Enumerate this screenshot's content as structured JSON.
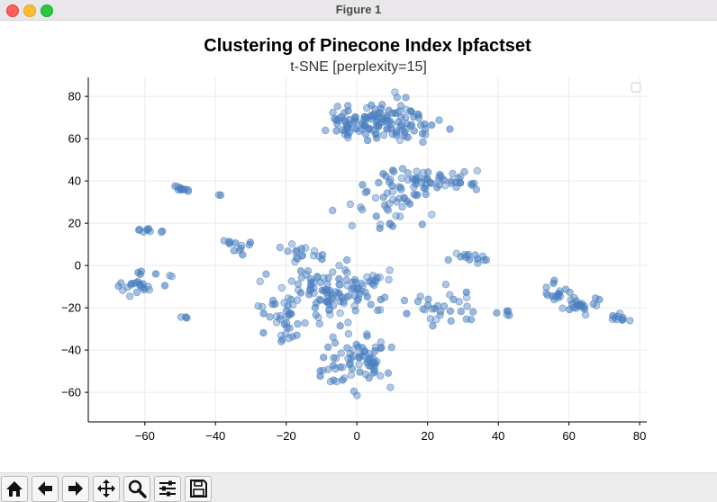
{
  "window": {
    "title": "Figure 1"
  },
  "toolbar": {
    "buttons": [
      {
        "name": "home",
        "icon": "home-icon"
      },
      {
        "name": "back",
        "icon": "arrow-left-icon"
      },
      {
        "name": "forward",
        "icon": "arrow-right-icon"
      },
      {
        "name": "pan",
        "icon": "move-icon"
      },
      {
        "name": "zoom",
        "icon": "magnifier-icon"
      },
      {
        "name": "configure-subplots",
        "icon": "sliders-icon"
      },
      {
        "name": "save",
        "icon": "floppy-icon"
      }
    ]
  },
  "chart_data": {
    "type": "scatter",
    "title": "Clustering of Pinecone Index lpfactset",
    "subtitle": "t-SNE [perplexity=15]",
    "xlabel": "",
    "ylabel": "",
    "xlim": [
      -76,
      82
    ],
    "ylim": [
      -74,
      89
    ],
    "xticks": [
      -60,
      -40,
      -20,
      0,
      20,
      40,
      60,
      80
    ],
    "yticks": [
      -60,
      -40,
      -20,
      0,
      20,
      40,
      60,
      80
    ],
    "grid": true,
    "legend": "top-right",
    "marker_color": "#4a7fbf",
    "clusters": [
      {
        "center": [
          8,
          68
        ],
        "spread": [
          11,
          8
        ],
        "count": 110
      },
      {
        "center": [
          22,
          41
        ],
        "spread": [
          14,
          6
        ],
        "count": 55
      },
      {
        "center": [
          8,
          30
        ],
        "spread": [
          10,
          8
        ],
        "count": 40
      },
      {
        "center": [
          -49,
          36
        ],
        "spread": [
          2,
          1.5
        ],
        "count": 10
      },
      {
        "center": [
          -39,
          33
        ],
        "spread": [
          0.5,
          0.5
        ],
        "count": 2
      },
      {
        "center": [
          -59,
          17
        ],
        "spread": [
          2.5,
          1.3
        ],
        "count": 9
      },
      {
        "center": [
          -62,
          -9
        ],
        "spread": [
          5,
          4
        ],
        "count": 24
      },
      {
        "center": [
          -52,
          -5
        ],
        "spread": [
          1,
          0.5
        ],
        "count": 2
      },
      {
        "center": [
          -48,
          -24
        ],
        "spread": [
          1,
          1
        ],
        "count": 3
      },
      {
        "center": [
          -5,
          -12
        ],
        "spread": [
          12,
          9
        ],
        "count": 110
      },
      {
        "center": [
          0,
          -45
        ],
        "spread": [
          10,
          10
        ],
        "count": 75
      },
      {
        "center": [
          -22,
          -25
        ],
        "spread": [
          6,
          12
        ],
        "count": 35
      },
      {
        "center": [
          24,
          -20
        ],
        "spread": [
          8,
          9
        ],
        "count": 30
      },
      {
        "center": [
          32,
          4
        ],
        "spread": [
          4,
          2
        ],
        "count": 14
      },
      {
        "center": [
          57,
          -14
        ],
        "spread": [
          3,
          4
        ],
        "count": 18
      },
      {
        "center": [
          63,
          -19
        ],
        "spread": [
          3,
          3
        ],
        "count": 22
      },
      {
        "center": [
          74,
          -25
        ],
        "spread": [
          2.5,
          2
        ],
        "count": 10
      },
      {
        "center": [
          42,
          -22
        ],
        "spread": [
          3,
          2
        ],
        "count": 5
      },
      {
        "center": [
          -34,
          10
        ],
        "spread": [
          4,
          3
        ],
        "count": 12
      },
      {
        "center": [
          -16,
          6
        ],
        "spread": [
          6,
          4
        ],
        "count": 15
      },
      {
        "center": [
          -3,
          68
        ],
        "spread": [
          4,
          6
        ],
        "count": 20
      }
    ]
  }
}
